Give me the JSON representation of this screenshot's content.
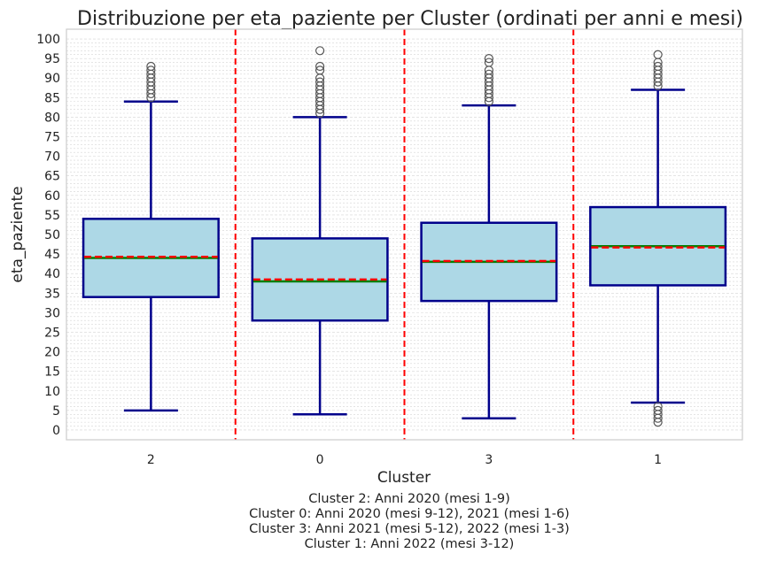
{
  "chart_data": {
    "type": "box",
    "title": "Distribuzione per eta_paziente per Cluster (ordinati per anni e mesi)",
    "xlabel": "Cluster",
    "ylabel": "eta_paziente",
    "ylim": [
      -2.5,
      102.5
    ],
    "yticks": [
      0,
      5,
      10,
      15,
      20,
      25,
      30,
      35,
      40,
      45,
      50,
      55,
      60,
      65,
      70,
      75,
      80,
      85,
      90,
      95,
      100
    ],
    "categories": [
      "2",
      "0",
      "3",
      "1"
    ],
    "boxes": [
      {
        "cluster": "2",
        "whisker_low": 5,
        "q1": 34,
        "median": 44,
        "mean": 44.3,
        "q3": 54,
        "whisker_high": 84,
        "outliers": [
          85,
          86,
          87,
          88,
          89,
          90,
          91,
          92,
          93
        ]
      },
      {
        "cluster": "0",
        "whisker_low": 4,
        "q1": 28,
        "median": 38,
        "mean": 38.5,
        "q3": 49,
        "whisker_high": 80,
        "outliers": [
          81,
          82,
          83,
          84,
          85,
          86,
          87,
          88,
          89,
          90,
          92,
          93,
          97
        ]
      },
      {
        "cluster": "3",
        "whisker_low": 3,
        "q1": 33,
        "median": 43,
        "mean": 43.2,
        "q3": 53,
        "whisker_high": 83,
        "outliers": [
          84,
          85,
          86,
          87,
          88,
          89,
          90,
          91,
          92,
          94,
          95
        ]
      },
      {
        "cluster": "1",
        "whisker_low": 7,
        "q1": 37,
        "median": 47,
        "mean": 46.7,
        "q3": 57,
        "whisker_high": 87,
        "outliers": [
          88,
          89,
          90,
          91,
          92,
          93,
          94,
          96,
          6,
          5,
          4,
          3,
          2
        ]
      }
    ],
    "separators_after_index": [
      0,
      1,
      2
    ],
    "grid": true,
    "colors": {
      "box_fill": "#add8e6",
      "box_edge": "#00008b",
      "median": "#008000",
      "mean": "#ff0000",
      "separator": "#ff0000",
      "outlier": "#555555",
      "grid": "#d5d5d5"
    },
    "caption_lines": [
      "Cluster 2: Anni 2020 (mesi 1-9)",
      "Cluster 0: Anni 2020 (mesi 9-12), 2021 (mesi 1-6)",
      "Cluster 3: Anni 2021 (mesi 5-12), 2022 (mesi 1-3)",
      "Cluster 1: Anni 2022 (mesi 3-12)"
    ]
  }
}
